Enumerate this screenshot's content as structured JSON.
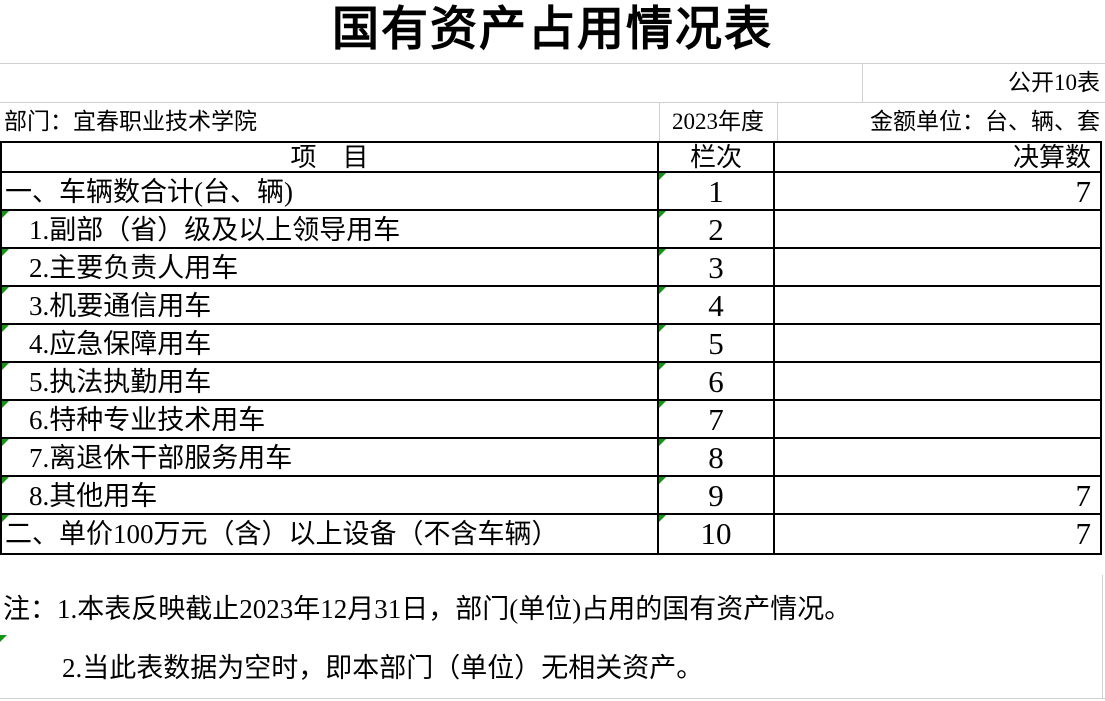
{
  "title": "国有资产占用情况表",
  "meta": {
    "public_label": "公开10表",
    "department": "部门：宜春职业技术学院",
    "year": "2023年度",
    "unit": "金额单位：台、辆、套"
  },
  "table": {
    "headers": {
      "item": "项　目",
      "column": "栏次",
      "value": "决算数"
    },
    "rows": [
      {
        "item": "一、车辆数合计(台、辆)",
        "column": "1",
        "value": "7",
        "indent": false,
        "item_marker": false,
        "column_marker": true
      },
      {
        "item": "1.副部（省）级及以上领导用车",
        "column": "2",
        "value": "",
        "indent": true,
        "item_marker": true,
        "column_marker": true
      },
      {
        "item": "2.主要负责人用车",
        "column": "3",
        "value": "",
        "indent": true,
        "item_marker": true,
        "column_marker": true
      },
      {
        "item": "3.机要通信用车",
        "column": "4",
        "value": "",
        "indent": true,
        "item_marker": true,
        "column_marker": true
      },
      {
        "item": "4.应急保障用车",
        "column": "5",
        "value": "",
        "indent": true,
        "item_marker": true,
        "column_marker": true
      },
      {
        "item": "5.执法执勤用车",
        "column": "6",
        "value": "",
        "indent": true,
        "item_marker": true,
        "column_marker": true
      },
      {
        "item": "6.特种专业技术用车",
        "column": "7",
        "value": "",
        "indent": true,
        "item_marker": true,
        "column_marker": true
      },
      {
        "item": "7.离退休干部服务用车",
        "column": "8",
        "value": "",
        "indent": true,
        "item_marker": true,
        "column_marker": true
      },
      {
        "item": "8.其他用车",
        "column": "9",
        "value": "7",
        "indent": true,
        "item_marker": true,
        "column_marker": true
      },
      {
        "item": "二、单价100万元（含）以上设备（不含车辆）",
        "column": "10",
        "value": "7",
        "indent": false,
        "item_marker": true,
        "column_marker": true
      }
    ]
  },
  "notes": {
    "line1": "注：1.本表反映截止2023年12月31日，部门(单位)占用的国有资产情况。",
    "line2": "2.当此表数据为空时，即本部门（单位）无相关资产。"
  },
  "colors": {
    "border": "#000000",
    "gridline": "#d0d0d0",
    "marker_green": "#129612"
  }
}
